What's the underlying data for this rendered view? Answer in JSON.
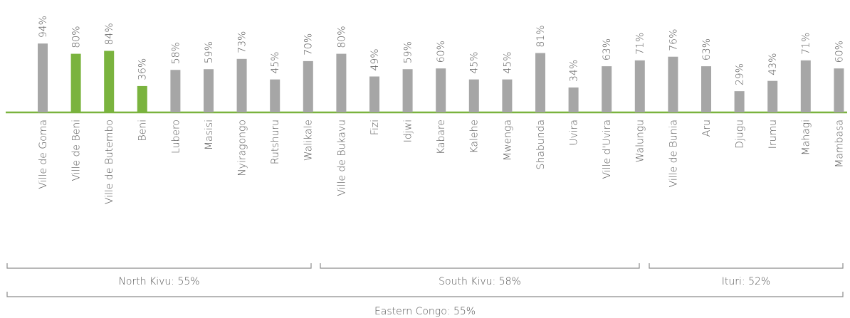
{
  "chart_data": {
    "type": "bar",
    "categories": [
      "Ville de Goma",
      "Ville de Beni",
      "Ville de Butembo",
      "Beni",
      "Lubero",
      "Masisi",
      "Nyiragongo",
      "Rutshuru",
      "Walikale",
      "Ville de Bukavu",
      "Fizi",
      "Idjwi",
      "Kabare",
      "Kalehe",
      "Mwenga",
      "Shabunda",
      "Uvira",
      "Ville d'Uvira",
      "Walungu",
      "Ville de Bunia",
      "Aru",
      "Djugu",
      "Irumu",
      "Mahagi",
      "Mambasa"
    ],
    "values": [
      94,
      80,
      84,
      36,
      58,
      59,
      73,
      45,
      70,
      80,
      49,
      59,
      60,
      45,
      45,
      81,
      34,
      63,
      71,
      76,
      63,
      29,
      43,
      71,
      60
    ],
    "value_labels": [
      "94%",
      "80%",
      "84%",
      "36%",
      "58%",
      "59%",
      "73%",
      "45%",
      "70%",
      "80%",
      "49%",
      "59%",
      "60%",
      "45%",
      "45%",
      "81%",
      "34%",
      "63%",
      "71%",
      "76%",
      "63%",
      "29%",
      "43%",
      "71%",
      "60%"
    ],
    "colors": [
      "#a6a6a6",
      "#7ab33e",
      "#7ab33e",
      "#7ab33e",
      "#a6a6a6",
      "#a6a6a6",
      "#a6a6a6",
      "#a6a6a6",
      "#a6a6a6",
      "#a6a6a6",
      "#a6a6a6",
      "#a6a6a6",
      "#a6a6a6",
      "#a6a6a6",
      "#a6a6a6",
      "#a6a6a6",
      "#a6a6a6",
      "#a6a6a6",
      "#a6a6a6",
      "#a6a6a6",
      "#a6a6a6",
      "#a6a6a6",
      "#a6a6a6",
      "#a6a6a6",
      "#a6a6a6"
    ],
    "groups": [
      "North Kivu: 55%",
      "South Kivu: 58%",
      "Ituri: 52%"
    ],
    "total_label": "Eastern Congo: 55%"
  }
}
